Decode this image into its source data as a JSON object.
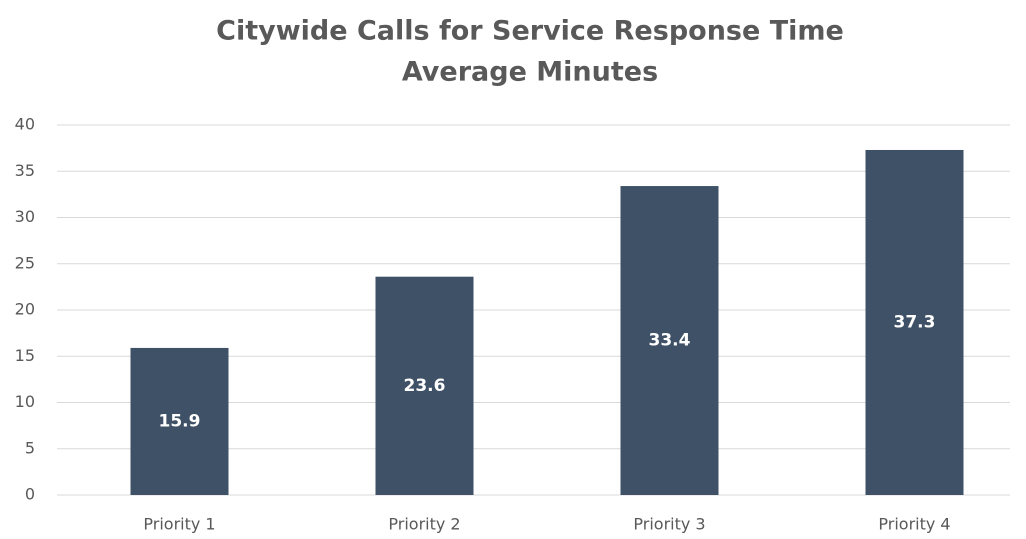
{
  "chart_data": {
    "type": "bar",
    "title": "Citywide Calls for Service Response Time",
    "subtitle": "Average Minutes",
    "categories": [
      "Priority 1",
      "Priority 2",
      "Priority 3",
      "Priority 4"
    ],
    "values": [
      15.9,
      23.6,
      33.4,
      37.3
    ],
    "color": "#3f5166",
    "ylim": [
      0,
      40
    ],
    "yticks": [
      0,
      5,
      10,
      15,
      20,
      25,
      30,
      35,
      40
    ],
    "grid": true
  }
}
